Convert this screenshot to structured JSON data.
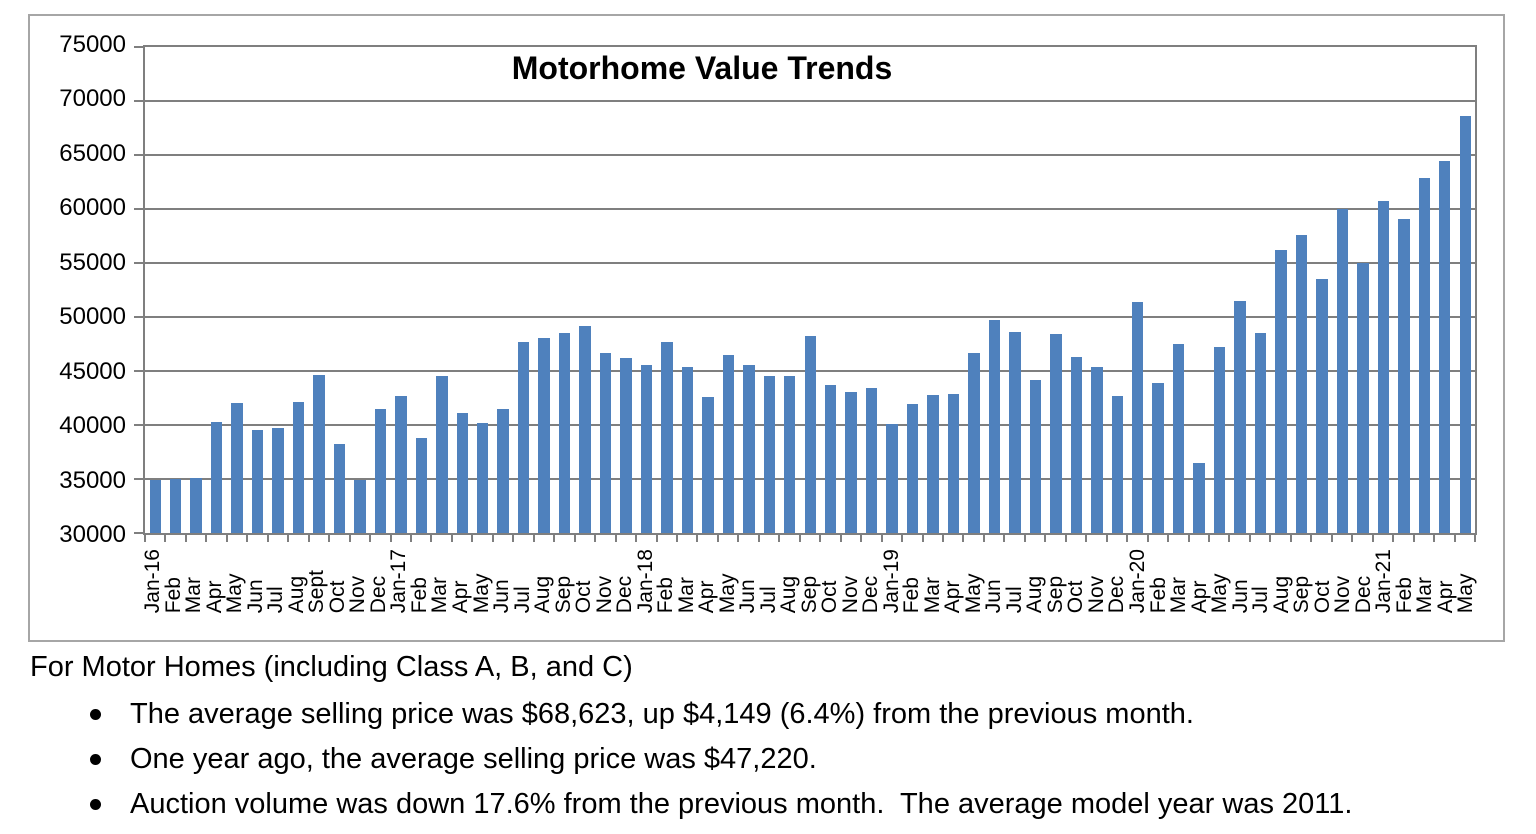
{
  "chart_data": {
    "type": "bar",
    "title": "Motorhome Value Trends",
    "xlabel": "",
    "ylabel": "",
    "ylim": [
      30000,
      75000
    ],
    "yticks": [
      75000,
      70000,
      65000,
      60000,
      55000,
      50000,
      45000,
      40000,
      35000,
      30000
    ],
    "grid": "horizontal",
    "legend": "none",
    "bar_color": "#4F81BD",
    "axis_color": "#7f7f7f",
    "x": [
      "Jan-16",
      "Feb",
      "Mar",
      "Apr",
      "May",
      "Jun",
      "Jul",
      "Aug",
      "Sept",
      "Oct",
      "Nov",
      "Dec",
      "Jan-17",
      "Feb",
      "Mar",
      "Apr",
      "May",
      "Jun",
      "Jul",
      "Aug",
      "Sep",
      "Oct",
      "Nov",
      "Dec",
      "Jan-18",
      "Feb",
      "Mar",
      "Apr",
      "May",
      "Jun",
      "Jul",
      "Aug",
      "Sep",
      "Oct",
      "Nov",
      "Dec",
      "Jan-19",
      "Feb",
      "Mar",
      "Apr",
      "May",
      "Jun",
      "Jul",
      "Aug",
      "Sep",
      "Oct",
      "Nov",
      "Dec",
      "Jan-20",
      "Feb",
      "Mar",
      "Apr",
      "May",
      "Jun",
      "Jul",
      "Aug",
      "Sep",
      "Oct",
      "Nov",
      "Dec",
      "Jan-21",
      "Feb",
      "Mar",
      "Apr",
      "May"
    ],
    "values": [
      34900,
      35000,
      35100,
      40300,
      42000,
      39500,
      39700,
      42100,
      44600,
      38200,
      34950,
      41500,
      42700,
      38800,
      44500,
      41100,
      40200,
      41500,
      47700,
      48100,
      48500,
      49200,
      46700,
      46200,
      45600,
      47700,
      45400,
      42600,
      46500,
      45600,
      44500,
      44500,
      48200,
      43700,
      43100,
      43400,
      40100,
      41900,
      42800,
      42900,
      46700,
      49700,
      48600,
      44200,
      48400,
      46300,
      45400,
      42700,
      51400,
      43900,
      47500,
      36500,
      47220,
      51500,
      48500,
      56200,
      57600,
      53500,
      60000,
      55000,
      60700,
      59100,
      62900,
      64474,
      68623
    ]
  },
  "notes": {
    "heading": "For Motor Homes (including Class A, B, and C)",
    "bullets": [
      "The average selling price was $68,623, up $4,149 (6.4%) from the previous month.",
      "One year ago, the average selling price was $47,220.",
      "Auction volume was down 17.6% from the previous month.  The average model year was 2011."
    ]
  }
}
